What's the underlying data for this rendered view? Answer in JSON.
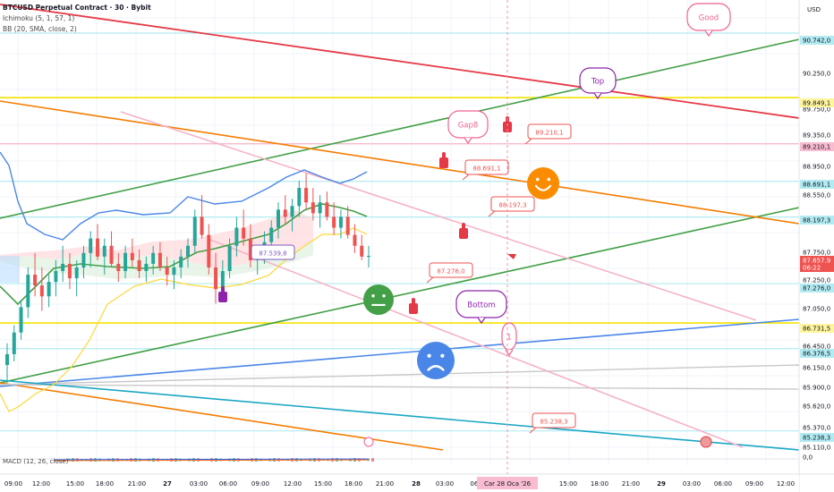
{
  "header": {
    "symbol": "BTCUSD Perpetual Contract · 30 · Bybit",
    "ichimoku": "Ichimoku (5, 1, 57, 1)",
    "bb": "BB (20, SMA, close, 2)",
    "currency": "USD"
  },
  "macd_label": "MACD (12, 26, close)",
  "price_axis": {
    "ticks": [
      "90.250,0",
      "89.750,0",
      "89.350,0",
      "88.950,0",
      "88.550,0",
      "87.750,0",
      "87.250,0",
      "87.050,0",
      "86.450,0",
      "86.150,0",
      "85.900,0",
      "85.620,0",
      "85.370,0",
      "85.110,0",
      "0,0"
    ],
    "badges": [
      {
        "text": "90.742,0",
        "kind": "cyan"
      },
      {
        "text": "89.849,1",
        "kind": "yellow"
      },
      {
        "text": "89.210,1",
        "kind": "pink"
      },
      {
        "text": "88.691,1",
        "kind": "cyan"
      },
      {
        "text": "88.197,3",
        "kind": "cyan"
      },
      {
        "text": "87.657,9",
        "kind": "red"
      },
      {
        "text": "06:22",
        "kind": "red"
      },
      {
        "text": "87.276,0",
        "kind": "cyan"
      },
      {
        "text": "86.731,5",
        "kind": "yellow"
      },
      {
        "text": "86.376,5",
        "kind": "cyan"
      },
      {
        "text": "85.238,3",
        "kind": "cyan"
      }
    ]
  },
  "time_axis": {
    "labels": [
      "09:00",
      "12:00",
      "15:00",
      "18:00",
      "21:00",
      "27",
      "03:00",
      "06:00",
      "09:00",
      "12:00",
      "15:00",
      "18:00",
      "21:00",
      "28",
      "03:00",
      "06:",
      "09:00",
      "15:00",
      "18:00",
      "21:00",
      "29",
      "03:00",
      "06:00",
      "09:00",
      "12:00"
    ],
    "highlight": "Car 28 Oca '26"
  },
  "annotations": {
    "good": "Good",
    "top": "Top",
    "gap": "Gap8",
    "bottom": "Bottom",
    "one": "1"
  },
  "price_callouts": [
    "89.210,1",
    "88.691,1",
    "88.197,3",
    "87.539,8",
    "87.276,0",
    "85.238,3"
  ],
  "colors": {
    "red_line": "#e53945",
    "green_line": "#43a047",
    "orange_line": "#f57c00",
    "yellow_line": "#f5e400",
    "pink_line": "#f5b3c8",
    "blue_line": "#4a86e8",
    "teal_line": "#1aa7c4",
    "gray_line": "#c8c8c8",
    "candle_up": "#26a69a",
    "candle_down": "#ef5350"
  },
  "chart_data": {
    "type": "candlestick",
    "title": "BTCUSD Perpetual Contract · 30 · Bybit",
    "ylim": [
      84950,
      91200
    ],
    "ohlc": [
      [
        86150,
        86450,
        85900,
        86300
      ],
      [
        86300,
        86700,
        86200,
        86600
      ],
      [
        86600,
        87050,
        86500,
        86950
      ],
      [
        86950,
        87500,
        86800,
        87400
      ],
      [
        87400,
        87700,
        87100,
        87250
      ],
      [
        87250,
        87500,
        86900,
        87100
      ],
      [
        87100,
        87400,
        86950,
        87300
      ],
      [
        87300,
        87600,
        87100,
        87450
      ],
      [
        87450,
        87800,
        87300,
        87550
      ],
      [
        87550,
        87700,
        87200,
        87350
      ],
      [
        87350,
        87600,
        87100,
        87500
      ],
      [
        87500,
        87800,
        87350,
        87700
      ],
      [
        87700,
        88000,
        87500,
        87900
      ],
      [
        87900,
        88100,
        87600,
        87650
      ],
      [
        87650,
        87900,
        87400,
        87800
      ],
      [
        87800,
        88000,
        87500,
        87550
      ],
      [
        87550,
        87700,
        87300,
        87450
      ],
      [
        87450,
        87800,
        87350,
        87700
      ],
      [
        87700,
        87900,
        87500,
        87600
      ],
      [
        87600,
        87750,
        87350,
        87450
      ],
      [
        87450,
        87650,
        87300,
        87550
      ],
      [
        87550,
        87800,
        87400,
        87700
      ],
      [
        87700,
        87850,
        87450,
        87500
      ],
      [
        87500,
        87650,
        87250,
        87400
      ],
      [
        87400,
        87600,
        87200,
        87500
      ],
      [
        87500,
        87750,
        87350,
        87650
      ],
      [
        87650,
        87900,
        87500,
        87800
      ],
      [
        87800,
        88300,
        87700,
        88200
      ],
      [
        88200,
        88500,
        87900,
        87950
      ],
      [
        87950,
        88100,
        87400,
        87500
      ],
      [
        87500,
        87700,
        87000,
        87200
      ],
      [
        87200,
        87600,
        87050,
        87450
      ],
      [
        87450,
        87900,
        87350,
        87800
      ],
      [
        87800,
        88200,
        87650,
        88050
      ],
      [
        88050,
        88300,
        87800,
        87900
      ],
      [
        87900,
        88100,
        87500,
        87600
      ],
      [
        87600,
        87800,
        87400,
        87700
      ],
      [
        87700,
        88000,
        87550,
        87850
      ],
      [
        87850,
        88150,
        87700,
        88050
      ],
      [
        88050,
        88400,
        87900,
        88300
      ],
      [
        88300,
        88500,
        88100,
        88200
      ],
      [
        88200,
        88450,
        88000,
        88350
      ],
      [
        88350,
        88700,
        88200,
        88600
      ],
      [
        88600,
        88800,
        88300,
        88400
      ],
      [
        88400,
        88600,
        88150,
        88250
      ],
      [
        88250,
        88500,
        88050,
        88400
      ],
      [
        88400,
        88550,
        88150,
        88200
      ],
      [
        88200,
        88400,
        87950,
        88050
      ],
      [
        88050,
        88300,
        87900,
        88200
      ],
      [
        88200,
        88350,
        87900,
        87950
      ],
      [
        87950,
        88100,
        87700,
        87800
      ],
      [
        87800,
        87950,
        87600,
        87650
      ],
      [
        87650,
        87800,
        87500,
        87660
      ]
    ],
    "horizontal_levels": [
      {
        "value": 90742.0,
        "color": "cyan"
      },
      {
        "value": 89849.1,
        "color": "yellow"
      },
      {
        "value": 89210.1,
        "color": "pink"
      },
      {
        "value": 88691.1,
        "color": "cyan"
      },
      {
        "value": 88197.3,
        "color": "cyan"
      },
      {
        "value": 87276.0,
        "color": "cyan"
      },
      {
        "value": 86731.5,
        "color": "yellow"
      },
      {
        "value": 86376.5,
        "color": "cyan"
      },
      {
        "value": 85238.3,
        "color": "cyan"
      }
    ],
    "last_price": 87657.9
  }
}
